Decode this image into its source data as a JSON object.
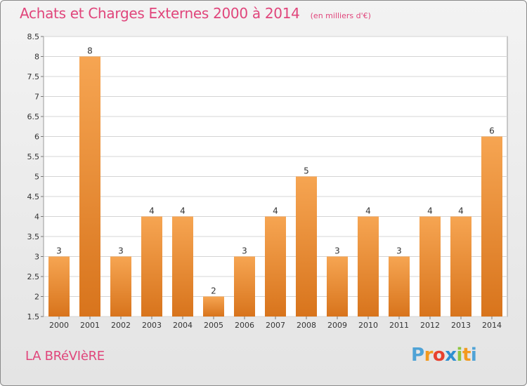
{
  "header": {
    "title": "Achats et Charges Externes 2000 à 2014",
    "subtitle": "(en milliers d'€)"
  },
  "footer": {
    "place": "LA BRéVIèRE",
    "logo_letters": [
      "P",
      "r",
      "o",
      "x",
      "i",
      "t",
      "i"
    ],
    "logo_colors": [
      "#4fa3d6",
      "#f39a1e",
      "#e8412e",
      "#2f8fd0",
      "#8dc63f",
      "#f39a1e",
      "#4fa3d6"
    ]
  },
  "colors": {
    "bar_light": "#f6a552",
    "bar_dark": "#d8741c",
    "title": "#e0457b"
  },
  "chart_data": {
    "type": "bar",
    "title": "Achats et Charges Externes 2000 à 2014",
    "xlabel": "",
    "ylabel": "",
    "categories": [
      "2000",
      "2001",
      "2002",
      "2003",
      "2004",
      "2005",
      "2006",
      "2007",
      "2008",
      "2009",
      "2010",
      "2011",
      "2012",
      "2013",
      "2014"
    ],
    "values": [
      3,
      8,
      3,
      4,
      4,
      2,
      3,
      4,
      5,
      3,
      4,
      3,
      4,
      4,
      6
    ],
    "ylim": [
      1.5,
      8.5
    ],
    "yticks": [
      "1.5",
      "2",
      "2.5",
      "3",
      "3.5",
      "4",
      "4.5",
      "5",
      "5.5",
      "6",
      "6.5",
      "7",
      "7.5",
      "8",
      "8.5"
    ],
    "grid": true,
    "legend": "none"
  }
}
